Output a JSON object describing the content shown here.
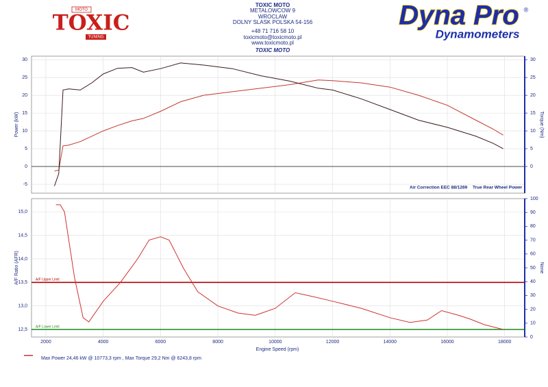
{
  "header": {
    "logo_left": {
      "top": "MOTO",
      "main": "TOXIC",
      "bottom": "TUNING"
    },
    "address": [
      "TOXIC MOTO",
      "METALOWCOW 9",
      "WROCLAW",
      "DOLNY SLASK POLSKA 54-156",
      "+48 71 716 58 10",
      "toxicmoto@toxicmoto.pl",
      "www.toxicmoto.pl"
    ],
    "customer": "TOXIC MOTO",
    "logo_right": {
      "main": "Dyna Pro",
      "mark": "®",
      "sub": "Dynamometers"
    }
  },
  "chart_data": [
    {
      "type": "line",
      "ylabel": "Power (kW)",
      "y2label": "Torque (Nm)",
      "xlim": [
        1500,
        18700
      ],
      "xticks": [
        2000,
        4000,
        6000,
        8000,
        10000,
        12000,
        14000,
        16000,
        18000
      ],
      "x_tick_labels": false,
      "ylim": [
        -7.5,
        31
      ],
      "yticks": [
        -5,
        0,
        5,
        10,
        15,
        20,
        25,
        30
      ],
      "y2lim": [
        -7.5,
        31
      ],
      "y2ticks": [
        0,
        5,
        10,
        15,
        20,
        25,
        30
      ],
      "grid": true,
      "zero_line": true,
      "annotations": [
        "Air Correction EEC 88/1269",
        "True Rear Wheel Power"
      ],
      "x": [
        2300,
        2450,
        2600,
        2800,
        3200,
        3600,
        4000,
        4500,
        5000,
        5400,
        6000,
        6700,
        7500,
        8500,
        9500,
        10500,
        11500,
        12000,
        13000,
        14000,
        15000,
        16000,
        17000,
        17600,
        17950
      ],
      "series": [
        {
          "color": "#c0392b",
          "values": [
            -1.3,
            -1,
            5.8,
            6,
            7,
            8.5,
            10,
            11.5,
            12.8,
            13.5,
            15.5,
            18.2,
            20,
            21,
            22,
            23,
            24.3,
            24.1,
            23.5,
            22.3,
            20,
            17.2,
            13,
            10.5,
            8.8
          ]
        },
        {
          "color": "#3a1a1a",
          "axis": "y2",
          "values": [
            -5.5,
            -2,
            21.5,
            21.8,
            21.5,
            23.5,
            26,
            27.6,
            27.8,
            26.5,
            27.5,
            29.1,
            28.5,
            27.5,
            25.5,
            24,
            22,
            21.5,
            19,
            16,
            13,
            11,
            8.5,
            6.5,
            5
          ]
        }
      ]
    },
    {
      "type": "line",
      "ylabel": "A/F Ratio (AFR)",
      "y2label": "None",
      "xlabel": "Engine Speed (rpm)",
      "xlim": [
        1500,
        18700
      ],
      "xticks": [
        2000,
        4000,
        6000,
        8000,
        10000,
        12000,
        14000,
        16000,
        18000
      ],
      "x_tick_labels": true,
      "ylim": [
        12.34,
        15.28
      ],
      "yticks": [
        {
          "value": 12.5,
          "label": "12,5"
        },
        {
          "value": 13,
          "label": "13,0"
        },
        {
          "value": 13.5,
          "label": "13,5"
        },
        {
          "value": 14,
          "label": "14,0"
        },
        {
          "value": 14.5,
          "label": "14,5"
        },
        {
          "value": 15,
          "label": "15,0"
        }
      ],
      "y2lim": [
        0,
        100
      ],
      "y2ticks": [
        0,
        10,
        20,
        30,
        40,
        50,
        60,
        70,
        80,
        90,
        100
      ],
      "grid": true,
      "zero_line": false,
      "limits": [
        {
          "label": "A/F Upper Limit",
          "value": 13.5,
          "color": "#b00000"
        },
        {
          "label": "A/F Lower Limit",
          "value": 12.5,
          "color": "#1a8a1a"
        }
      ],
      "x": [
        2350,
        2500,
        2650,
        3000,
        3300,
        3500,
        4000,
        4600,
        5200,
        5600,
        6000,
        6300,
        6800,
        7300,
        8000,
        8700,
        9300,
        10000,
        10700,
        11300,
        12000,
        13000,
        14000,
        14700,
        15300,
        15800,
        16400,
        16800,
        17300,
        17950
      ],
      "series": [
        {
          "color": "#d03030",
          "values": [
            15.15,
            15.15,
            15.0,
            13.6,
            12.75,
            12.66,
            13.1,
            13.5,
            14.0,
            14.4,
            14.47,
            14.4,
            13.8,
            13.3,
            13.0,
            12.85,
            12.8,
            12.95,
            13.28,
            13.2,
            13.1,
            12.95,
            12.75,
            12.65,
            12.7,
            12.9,
            12.8,
            12.72,
            12.6,
            12.5
          ]
        }
      ]
    }
  ],
  "footer": {
    "legend_color": "#b00000",
    "text": "Max Power 24,46 kW @ 10773,3 rpm , Max Torque 29,2 Nm @ 6243,8 rpm"
  }
}
